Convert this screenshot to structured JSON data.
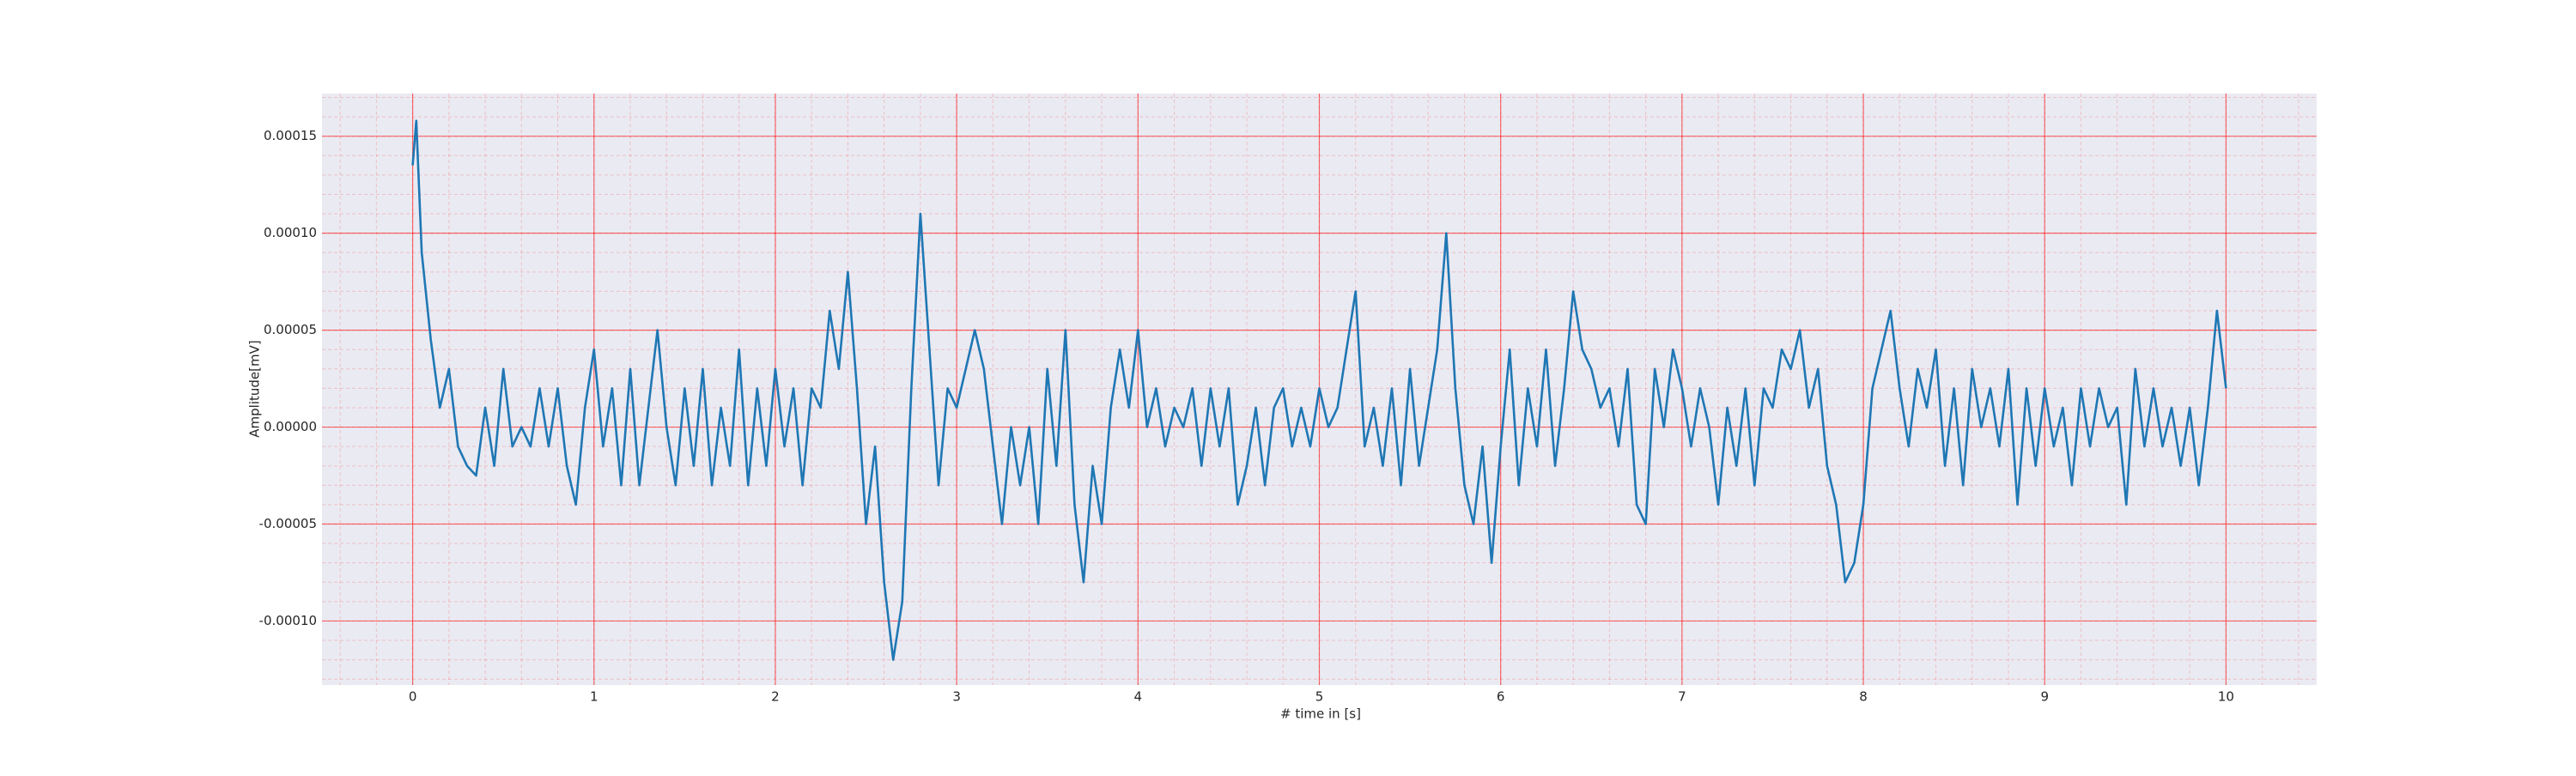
{
  "chart_data": {
    "type": "line",
    "xlabel": "# time in [s]",
    "ylabel": "Amplitude[mV]",
    "color": "#1f77b4",
    "grid": true,
    "minor_grid": true,
    "xlim": [
      -0.5,
      10.5
    ],
    "xticks": [
      0,
      1,
      2,
      3,
      4,
      5,
      6,
      7,
      8,
      9,
      10
    ],
    "ylim": [
      -0.000133,
      0.000172
    ],
    "yticks": [
      {
        "value": -0.0001,
        "label": "-0.00010"
      },
      {
        "value": -5e-05,
        "label": "-0.00005"
      },
      {
        "value": 0,
        "label": "0.00000"
      },
      {
        "value": 5e-05,
        "label": "0.00005"
      },
      {
        "value": 0.0001,
        "label": "0.00010"
      },
      {
        "value": 0.00015,
        "label": "0.00015"
      }
    ],
    "x": [
      0,
      0.02,
      0.05,
      0.1,
      0.15,
      0.2,
      0.25,
      0.3,
      0.35,
      0.4,
      0.45,
      0.5,
      0.55,
      0.6,
      0.65,
      0.7,
      0.75,
      0.8,
      0.85,
      0.9,
      0.95,
      1.0,
      1.05,
      1.1,
      1.15,
      1.2,
      1.25,
      1.3,
      1.35,
      1.4,
      1.45,
      1.5,
      1.55,
      1.6,
      1.65,
      1.7,
      1.75,
      1.8,
      1.85,
      1.9,
      1.95,
      2.0,
      2.05,
      2.1,
      2.15,
      2.2,
      2.25,
      2.3,
      2.35,
      2.4,
      2.45,
      2.5,
      2.55,
      2.6,
      2.65,
      2.7,
      2.75,
      2.8,
      2.85,
      2.9,
      2.95,
      3.0,
      3.05,
      3.1,
      3.15,
      3.2,
      3.25,
      3.3,
      3.35,
      3.4,
      3.45,
      3.5,
      3.55,
      3.6,
      3.65,
      3.7,
      3.75,
      3.8,
      3.85,
      3.9,
      3.95,
      4.0,
      4.05,
      4.1,
      4.15,
      4.2,
      4.25,
      4.3,
      4.35,
      4.4,
      4.45,
      4.5,
      4.55,
      4.6,
      4.65,
      4.7,
      4.75,
      4.8,
      4.85,
      4.9,
      4.95,
      5.0,
      5.05,
      5.1,
      5.15,
      5.2,
      5.25,
      5.3,
      5.35,
      5.4,
      5.45,
      5.5,
      5.55,
      5.6,
      5.65,
      5.7,
      5.75,
      5.8,
      5.85,
      5.9,
      5.95,
      6.0,
      6.05,
      6.1,
      6.15,
      6.2,
      6.25,
      6.3,
      6.35,
      6.4,
      6.45,
      6.5,
      6.55,
      6.6,
      6.65,
      6.7,
      6.75,
      6.8,
      6.85,
      6.9,
      6.95,
      7.0,
      7.05,
      7.1,
      7.15,
      7.2,
      7.25,
      7.3,
      7.35,
      7.4,
      7.45,
      7.5,
      7.55,
      7.6,
      7.65,
      7.7,
      7.75,
      7.8,
      7.85,
      7.9,
      7.95,
      8.0,
      8.05,
      8.1,
      8.15,
      8.2,
      8.25,
      8.3,
      8.35,
      8.4,
      8.45,
      8.5,
      8.55,
      8.6,
      8.65,
      8.7,
      8.75,
      8.8,
      8.85,
      8.9,
      8.95,
      9.0,
      9.05,
      9.1,
      9.15,
      9.2,
      9.25,
      9.3,
      9.35,
      9.4,
      9.45,
      9.5,
      9.55,
      9.6,
      9.65,
      9.7,
      9.75,
      9.8,
      9.85,
      9.9,
      9.95,
      10.0
    ],
    "values": [
      0.000135,
      0.000158,
      9e-05,
      4.5e-05,
      1e-05,
      3e-05,
      -1e-05,
      -2e-05,
      -2.5e-05,
      1e-05,
      -2e-05,
      3e-05,
      -1e-05,
      0,
      -1e-05,
      2e-05,
      -1e-05,
      2e-05,
      -2e-05,
      -4e-05,
      1e-05,
      4e-05,
      -1e-05,
      2e-05,
      -3e-05,
      3e-05,
      -3e-05,
      1e-05,
      5e-05,
      0,
      -3e-05,
      2e-05,
      -2e-05,
      3e-05,
      -3e-05,
      1e-05,
      -2e-05,
      4e-05,
      -3e-05,
      2e-05,
      -2e-05,
      3e-05,
      -1e-05,
      2e-05,
      -3e-05,
      2e-05,
      1e-05,
      6e-05,
      3e-05,
      8e-05,
      2e-05,
      -5e-05,
      -1e-05,
      -8e-05,
      -0.00012,
      -9e-05,
      2e-05,
      0.00011,
      4e-05,
      -3e-05,
      2e-05,
      1e-05,
      3e-05,
      5e-05,
      3e-05,
      -1e-05,
      -5e-05,
      0,
      -3e-05,
      0,
      -5e-05,
      3e-05,
      -2e-05,
      5e-05,
      -4e-05,
      -8e-05,
      -2e-05,
      -5e-05,
      1e-05,
      4e-05,
      1e-05,
      5e-05,
      0,
      2e-05,
      -1e-05,
      1e-05,
      0,
      2e-05,
      -2e-05,
      2e-05,
      -1e-05,
      2e-05,
      -4e-05,
      -2e-05,
      1e-05,
      -3e-05,
      1e-05,
      2e-05,
      -1e-05,
      1e-05,
      -1e-05,
      2e-05,
      0,
      1e-05,
      4e-05,
      7e-05,
      -1e-05,
      1e-05,
      -2e-05,
      2e-05,
      -3e-05,
      3e-05,
      -2e-05,
      1e-05,
      4e-05,
      0.0001,
      2e-05,
      -3e-05,
      -5e-05,
      -1e-05,
      -7e-05,
      -1e-05,
      4e-05,
      -3e-05,
      2e-05,
      -1e-05,
      4e-05,
      -2e-05,
      2e-05,
      7e-05,
      4e-05,
      3e-05,
      1e-05,
      2e-05,
      -1e-05,
      3e-05,
      -4e-05,
      -5e-05,
      3e-05,
      0,
      4e-05,
      2e-05,
      -1e-05,
      2e-05,
      0,
      -4e-05,
      1e-05,
      -2e-05,
      2e-05,
      -3e-05,
      2e-05,
      1e-05,
      4e-05,
      3e-05,
      5e-05,
      1e-05,
      3e-05,
      -2e-05,
      -4e-05,
      -8e-05,
      -7e-05,
      -4e-05,
      2e-05,
      4e-05,
      6e-05,
      2e-05,
      -1e-05,
      3e-05,
      1e-05,
      4e-05,
      -2e-05,
      2e-05,
      -3e-05,
      3e-05,
      0,
      2e-05,
      -1e-05,
      3e-05,
      -4e-05,
      2e-05,
      -2e-05,
      2e-05,
      -1e-05,
      1e-05,
      -3e-05,
      2e-05,
      -1e-05,
      2e-05,
      0,
      1e-05,
      -4e-05,
      3e-05,
      -1e-05,
      2e-05,
      -1e-05,
      1e-05,
      -2e-05,
      1e-05,
      -3e-05,
      1e-05,
      6e-05,
      2e-05
    ]
  }
}
